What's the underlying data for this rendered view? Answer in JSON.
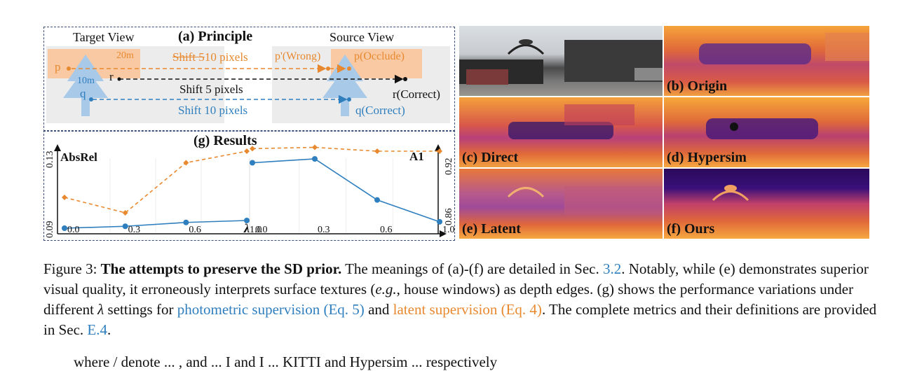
{
  "principle": {
    "title": "(a) Principle",
    "target_view": "Target View",
    "source_view": "Source View",
    "dist_20m": "20m",
    "dist_10m": "10m",
    "p": "p",
    "q": "q",
    "r": "r",
    "shift_p_a": "Shift 5",
    "shift_p_b": "10 pixels",
    "shift_r": "Shift 5 pixels",
    "shift_q": "Shift 10 pixels",
    "p_wrong": "p'(Wrong)",
    "p_occlude": "p(Occlude)",
    "r_correct": "r(Correct)",
    "q_correct": "q(Correct)"
  },
  "results": {
    "title": "(g) Results",
    "left_metric": "AbsRel",
    "right_metric": "A1",
    "left_ticks": [
      "0.13",
      "0.09"
    ],
    "right_ticks": [
      "0.92",
      "0.86"
    ],
    "lambda_label": "λ"
  },
  "chart_data": [
    {
      "type": "line",
      "title": "",
      "ylabel": "AbsRel",
      "xlabel": "λ",
      "x": [
        0.0,
        0.3,
        0.6,
        1.0
      ],
      "ylim": [
        0.09,
        0.13
      ],
      "series": [
        {
          "values": [
            0.106,
            0.098,
            0.124,
            0.13
          ]
        },
        {
          "values": [
            0.09,
            0.091,
            0.093,
            0.094
          ]
        }
      ]
    },
    {
      "type": "line",
      "title": "",
      "ylabel": "A1",
      "xlabel": "",
      "x": [
        0.0,
        0.3,
        0.6,
        1.0
      ],
      "ylim": [
        0.86,
        0.92
      ],
      "series": [
        {
          "values": [
            0.922,
            0.923,
            0.92,
            0.92
          ]
        },
        {
          "values": [
            0.911,
            0.914,
            0.882,
            0.865
          ]
        }
      ]
    }
  ],
  "tiles": {
    "b": "(b) Origin",
    "c": "(c) Direct",
    "d": "(d) Hypersim",
    "e": "(e) Latent",
    "f": "(f) Ours"
  },
  "caption": {
    "fig": "Figure 3:",
    "bold": "The attempts to preserve the SD prior.",
    "t1": "The meanings of (a)-(f) are detailed in Sec.",
    "ref1": "3.2",
    "t2": ". Notably,",
    "t3": "while (e) demonstrates superior visual quality, it erroneously interprets surface textures (",
    "eg": "e.g.",
    "t4": ", house windows) as",
    "t5": "depth edges. (g) shows the performance variations under different",
    "lam": "λ",
    "t6": "settings for",
    "photo": "photometric supervision (Eq. 5)",
    "t7": "and",
    "latent": "latent supervision (Eq. 4)",
    "t8": ". The complete metrics and their definitions are provided in Sec.",
    "ref2": "E.4",
    "t9": "."
  },
  "tail": {
    "text": "where / denote ... , and ... I and I ... KITTI and Hypersim ... respectively"
  },
  "colors": {
    "orange": "#e8892f",
    "blue": "#2f7fbf",
    "box": "#3a4f7a"
  }
}
